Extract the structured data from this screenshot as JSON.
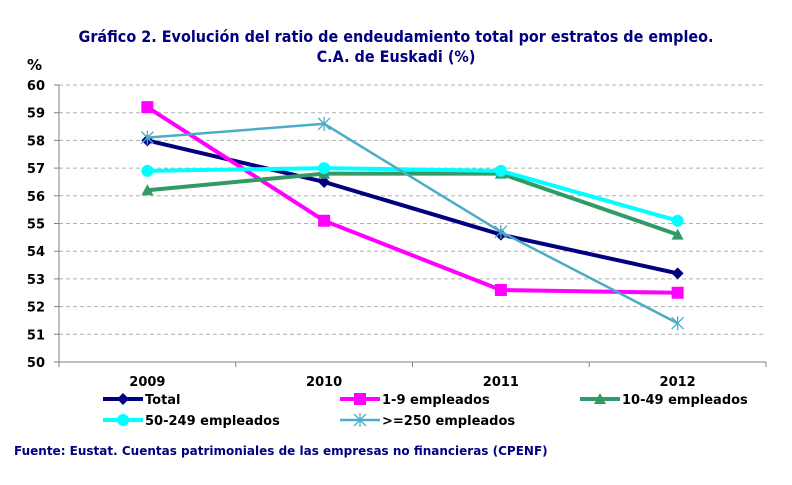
{
  "chart_data": {
    "type": "line",
    "title": "Gráfico 2. Evolución  del ratio de endeudamiento total por estratos de empleo.",
    "subtitle": "C.A. de Euskadi  (%)",
    "ylabel": "%",
    "xlabel": "",
    "categories": [
      "2009",
      "2010",
      "2011",
      "2012"
    ],
    "ylim": [
      50,
      60
    ],
    "yticks": [
      50,
      51,
      52,
      53,
      54,
      55,
      56,
      57,
      58,
      59,
      60
    ],
    "grid": true,
    "legend": "bottom",
    "series": [
      {
        "name": "Total",
        "values": [
          58.0,
          56.5,
          54.6,
          53.2
        ],
        "color": "#000080",
        "marker": "diamond"
      },
      {
        "name": "1-9 empleados",
        "values": [
          59.2,
          55.1,
          52.6,
          52.5
        ],
        "color": "#FF00FF",
        "marker": "square"
      },
      {
        "name": "10-49 empleados",
        "values": [
          56.2,
          56.8,
          56.8,
          54.6
        ],
        "color": "#339966",
        "marker": "triangle"
      },
      {
        "name": "50-249 empleados",
        "values": [
          56.9,
          57.0,
          56.9,
          55.1
        ],
        "color": "#00FFFF",
        "marker": "circle"
      },
      {
        "name": ">=250 empleados",
        "values": [
          58.1,
          58.6,
          54.7,
          51.4
        ],
        "color": "#4BACC6",
        "marker": "star"
      }
    ]
  },
  "source": "Fuente: Eustat. Cuentas patrimoniales de las empresas no financieras (CPENF)"
}
